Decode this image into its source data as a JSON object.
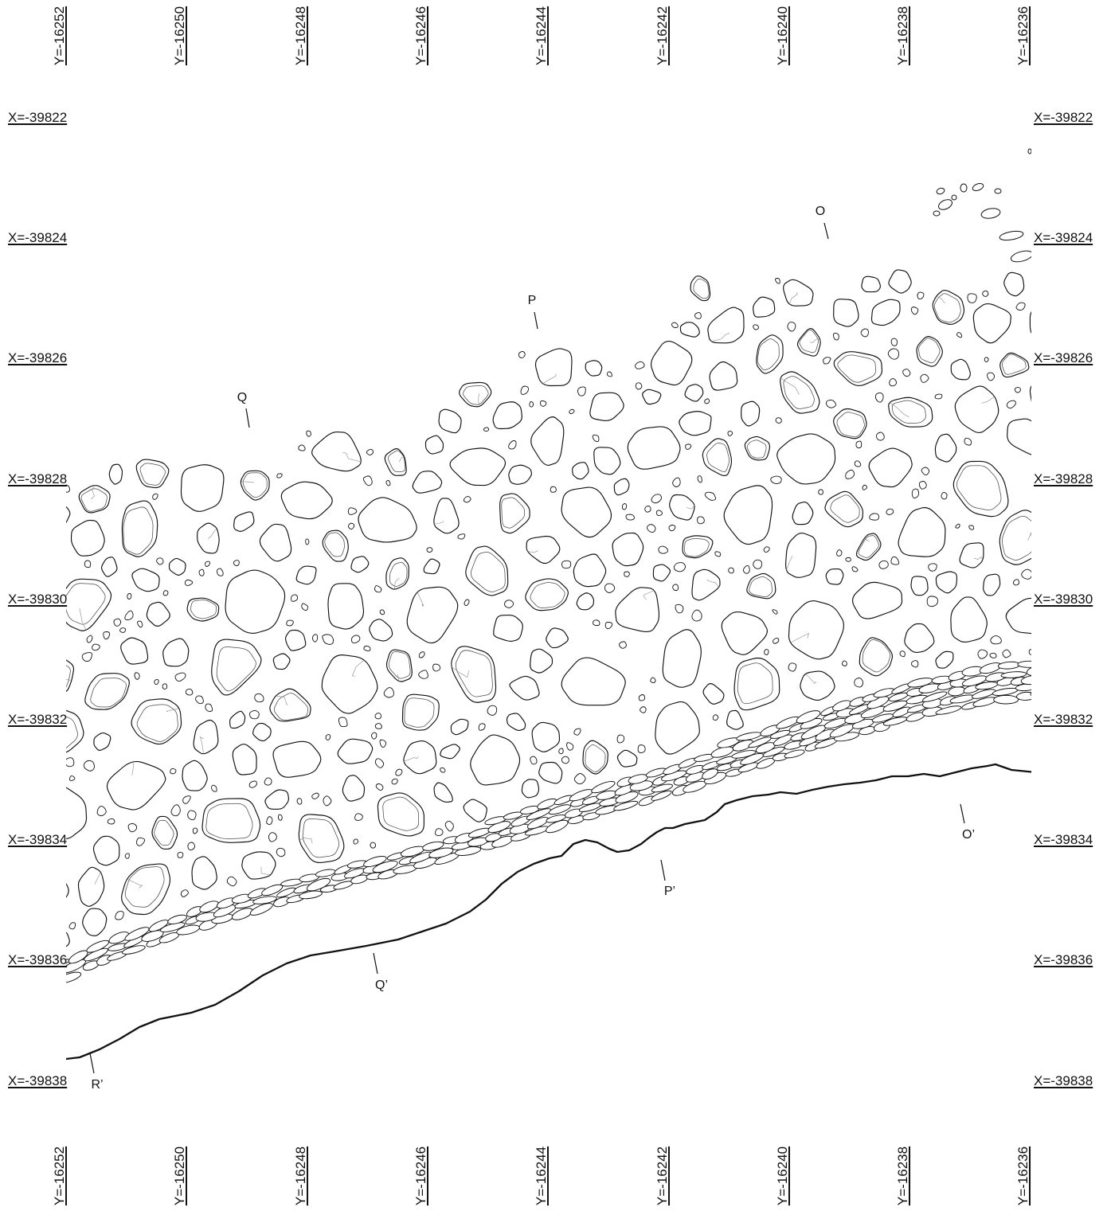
{
  "colors": {
    "ink": "#111111",
    "face_line": "#4a4a4a",
    "crack_line": "#8a8a8a",
    "paper": "#ffffff"
  },
  "grid_labels": {
    "y_top": [
      "Y=-16252",
      "Y=-16250",
      "Y=-16248",
      "Y=-16246",
      "Y=-16244",
      "Y=-16242",
      "Y=-16240",
      "Y=-16238",
      "Y=-16236"
    ],
    "y_bottom": [
      "Y=-16252",
      "Y=-16250",
      "Y=-16248",
      "Y=-16246",
      "Y=-16244",
      "Y=-16242",
      "Y=-16240",
      "Y=-16238",
      "Y=-16236"
    ],
    "x_left": [
      "X=-39822",
      "X=-39824",
      "X=-39826",
      "X=-39828",
      "X=-39830",
      "X=-39832",
      "X=-39834",
      "X=-39836",
      "X=-39838"
    ],
    "x_right": [
      "X=-39822",
      "X=-39824",
      "X=-39826",
      "X=-39828",
      "X=-39830",
      "X=-39832",
      "X=-39834",
      "X=-39836",
      "X=-39838"
    ]
  },
  "section_labels": {
    "O": "O",
    "P": "P",
    "Q": "Q",
    "O_end": "O’",
    "P_end": "P’",
    "Q_end": "Q’",
    "R_end": "R’"
  }
}
